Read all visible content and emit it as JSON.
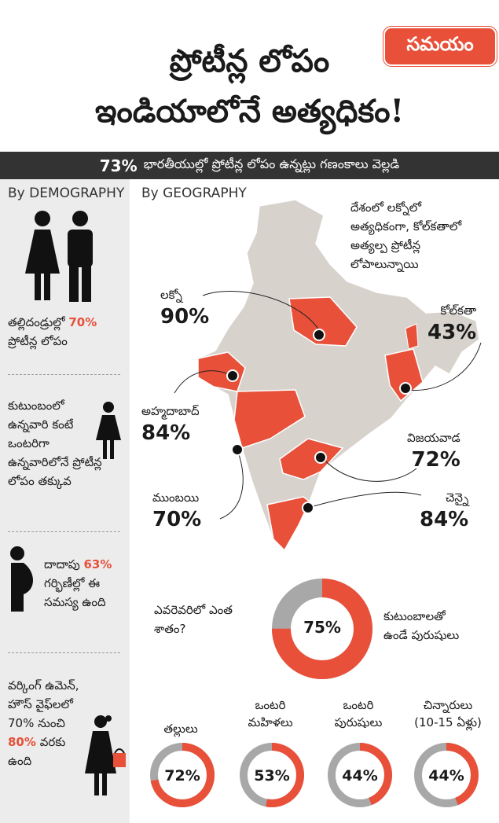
{
  "title": {
    "line1": "ప్రోటీన్ల లోపం",
    "line2": "ఇండియాలోనే అత్యధికం!"
  },
  "brand": "సమయం",
  "banner": {
    "pct": "73%",
    "text": "భారతీయుల్లో ప్రోటీన్ల లోపం ఉన్నట్లు గణంకాలు వెల్లడి"
  },
  "demography": {
    "heading": "By DEMOGRAPHY",
    "parents": {
      "pre": "తల్లిదండ్రుల్లో",
      "pct": "70%",
      "post": "ప్రోటీన్ల లోపం"
    },
    "single": {
      "lines": [
        "కుటుంబంలో",
        "ఉన్నవారి కంటే",
        "ఒంటరిగా",
        "ఉన్నవారిలోనే ప్రోటీన్ల",
        "లోపం తక్కువ"
      ]
    },
    "pregnant": {
      "pre": "దాదాపు",
      "pct": "63%",
      "line2": "గర్భిణీల్లో ఈ",
      "line3": "సమస్య ఉంది"
    },
    "working": {
      "line1": "వర్కింగ్ ఉమెన్,",
      "line2": "హౌస్ వైఫ్‌లలో",
      "line3": "70% నుంచి",
      "pct": "80%",
      "post": "వరకు",
      "line5": "ఉంది"
    }
  },
  "geography": {
    "heading": "By GEOGRAPHY",
    "note": [
      "దేశంలో లక్నోలో",
      "అత్యధికంగా, కోల్‌కతాలో",
      "అత్యల్ప ప్రోటీన్ల",
      "లోపాలున్నాయి"
    ],
    "cities": [
      {
        "name": "లక్నో",
        "pct": "90%"
      },
      {
        "name": "కోల్‌కతా",
        "pct": "43%"
      },
      {
        "name": "అహ్మదాబాద్",
        "pct": "84%"
      },
      {
        "name": "విజయవాడ",
        "pct": "72%"
      },
      {
        "name": "ముంబయి",
        "pct": "70%"
      },
      {
        "name": "చెన్నై",
        "pct": "84%"
      }
    ]
  },
  "question": {
    "line1": "ఎవరెవరిలో ఎంత",
    "line2": "శాతం?"
  },
  "men": {
    "pct": "75%",
    "value": 75,
    "line1": "కుటుంబాలతో",
    "line2": "ఉండే పురుషులు"
  },
  "groups": [
    {
      "lines": [
        "తల్లులు"
      ],
      "pct": "72%",
      "value": 72
    },
    {
      "lines": [
        "ఒంటరి",
        "మహిళలు"
      ],
      "pct": "53%",
      "value": 53
    },
    {
      "lines": [
        "ఒంటరి",
        "పురుషులు"
      ],
      "pct": "44%",
      "value": 44
    },
    {
      "lines": [
        "చిన్నారులు",
        "(10-15 ఏళ్లు)"
      ],
      "pct": "44%",
      "value": 44
    }
  ],
  "colors": {
    "accent": "#e8503a",
    "dark": "#333333",
    "grey_ring": "#a8a8a8",
    "map_land": "#d8d2cd"
  }
}
